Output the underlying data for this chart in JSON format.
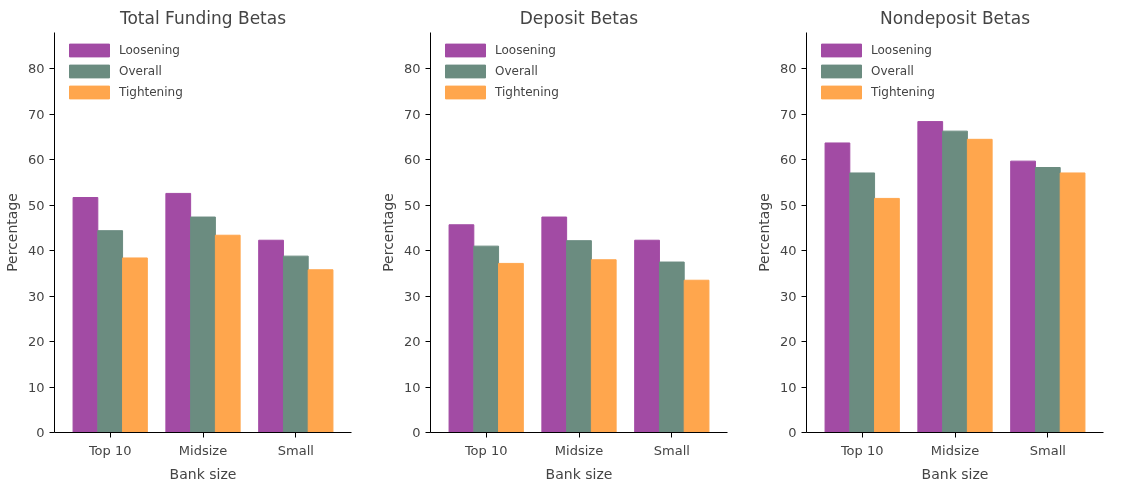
{
  "chart_data": [
    {
      "type": "bar",
      "title": "Total Funding Betas",
      "xlabel": "Bank size",
      "ylabel": "Percentage",
      "categories": [
        "Top 10",
        "Midsize",
        "Small"
      ],
      "ylim": [
        0,
        88
      ],
      "yticks": [
        0,
        10,
        20,
        30,
        40,
        50,
        60,
        70,
        80
      ],
      "grid": false,
      "legend": "top left",
      "series": [
        {
          "name": "Loosening",
          "color": "#a24ba4",
          "values": [
            51.7,
            52.6,
            42.3
          ]
        },
        {
          "name": "Overall",
          "color": "#6b8c80",
          "values": [
            44.4,
            47.4,
            38.8
          ]
        },
        {
          "name": "Tightening",
          "color": "#ffa64d",
          "values": [
            38.4,
            43.4,
            35.8
          ]
        }
      ]
    },
    {
      "type": "bar",
      "title": "Deposit Betas",
      "xlabel": "Bank size",
      "ylabel": "Percentage",
      "categories": [
        "Top 10",
        "Midsize",
        "Small"
      ],
      "ylim": [
        0,
        88
      ],
      "yticks": [
        0,
        10,
        20,
        30,
        40,
        50,
        60,
        70,
        80
      ],
      "grid": false,
      "legend": "top left",
      "series": [
        {
          "name": "Loosening",
          "color": "#a24ba4",
          "values": [
            45.7,
            47.4,
            42.3
          ]
        },
        {
          "name": "Overall",
          "color": "#6b8c80",
          "values": [
            41.0,
            42.2,
            37.5
          ]
        },
        {
          "name": "Tightening",
          "color": "#ffa64d",
          "values": [
            37.2,
            38.0,
            33.5
          ]
        }
      ]
    },
    {
      "type": "bar",
      "title": "Nondeposit Betas",
      "xlabel": "Bank size",
      "ylabel": "Percentage",
      "categories": [
        "Top 10",
        "Midsize",
        "Small"
      ],
      "ylim": [
        0,
        88
      ],
      "yticks": [
        0,
        10,
        20,
        30,
        40,
        50,
        60,
        70,
        80
      ],
      "grid": false,
      "legend": "top left",
      "series": [
        {
          "name": "Loosening",
          "color": "#a24ba4",
          "values": [
            63.7,
            68.4,
            59.7
          ]
        },
        {
          "name": "Overall",
          "color": "#6b8c80",
          "values": [
            57.1,
            66.3,
            58.3
          ]
        },
        {
          "name": "Tightening",
          "color": "#ffa64d",
          "values": [
            51.5,
            64.5,
            57.1
          ]
        }
      ]
    }
  ]
}
